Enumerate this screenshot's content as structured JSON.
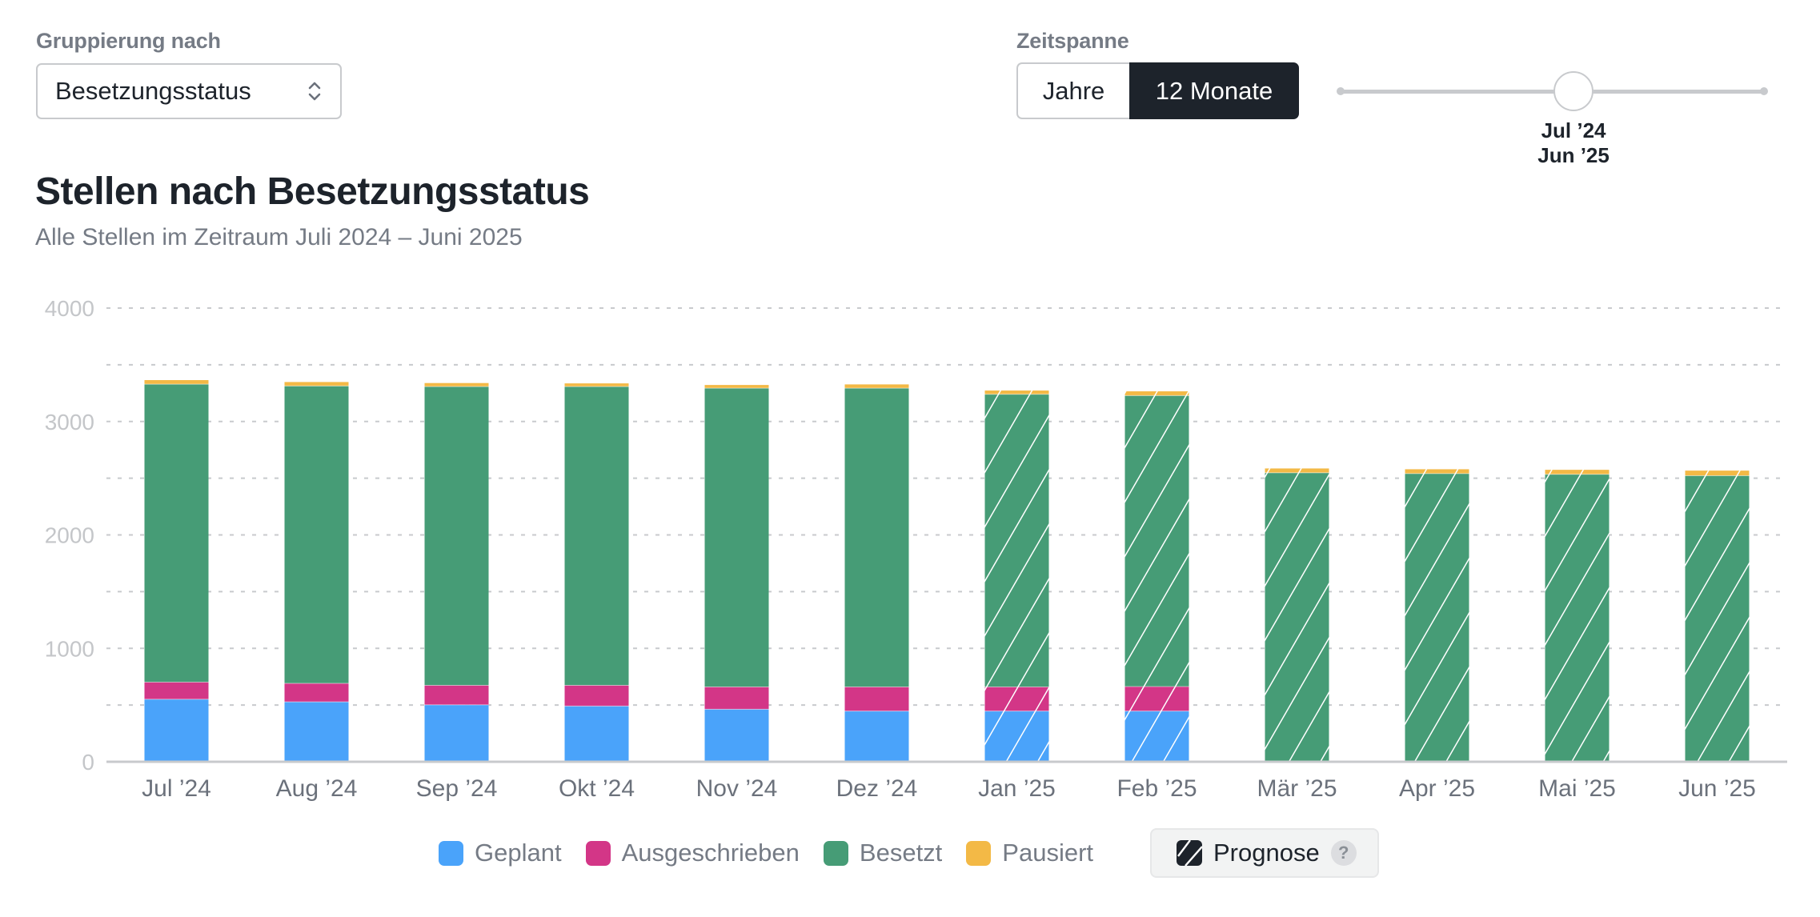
{
  "controls": {
    "group_by": {
      "label": "Gruppierung nach",
      "selected": "Besetzungsstatus"
    },
    "time_range": {
      "label": "Zeitspanne",
      "options": [
        "Jahre",
        "12 Monate"
      ],
      "selected": "12 Monate",
      "slider": {
        "position_fraction": 0.55,
        "start_label": "Jul ’24",
        "end_label": "Jun ’25"
      }
    }
  },
  "colors": {
    "Geplant": "#4aa3fa",
    "Ausgeschrieben": "#d33687",
    "Besetzt": "#469c76",
    "Pausiert": "#f3b946",
    "gridline": "#c8cacd",
    "axis": "#c8cacd"
  },
  "legend": {
    "items": [
      "Geplant",
      "Ausgeschrieben",
      "Besetzt",
      "Pausiert"
    ],
    "forecast_label": "Prognose",
    "help_symbol": "?"
  },
  "chart_data": {
    "type": "bar",
    "stacked": true,
    "title": "Stellen nach Besetzungsstatus",
    "subtitle": "Alle Stellen im Zeitraum Juli 2024 – Juni 2025",
    "xlabel": "",
    "ylabel": "",
    "ylim": [
      0,
      4000
    ],
    "yticks": [
      0,
      1000,
      2000,
      3000,
      4000
    ],
    "gridlines_every": 500,
    "grid": true,
    "legend_position": "bottom",
    "categories": [
      "Jul ’24",
      "Aug ’24",
      "Sep ’24",
      "Okt ’24",
      "Nov ’24",
      "Dez ’24",
      "Jan ’25",
      "Feb ’25",
      "Mär ’25",
      "Apr ’25",
      "Mai ’25",
      "Jun ’25"
    ],
    "forecast": [
      false,
      false,
      false,
      false,
      false,
      false,
      true,
      true,
      true,
      true,
      true,
      true
    ],
    "series": [
      {
        "name": "Geplant",
        "values": [
          551,
          528,
          502,
          491,
          463,
          447,
          447,
          447,
          0,
          0,
          0,
          0
        ]
      },
      {
        "name": "Ausgeschrieben",
        "values": [
          151,
          163,
          172,
          183,
          197,
          213,
          213,
          216,
          0,
          0,
          0,
          0
        ]
      },
      {
        "name": "Besetzt",
        "values": [
          2627,
          2622,
          2634,
          2634,
          2634,
          2634,
          2580,
          2565,
          2548,
          2541,
          2534,
          2522
        ]
      },
      {
        "name": "Pausiert",
        "values": [
          36,
          35,
          31,
          28,
          28,
          33,
          33,
          38,
          38,
          38,
          40,
          45
        ]
      }
    ]
  }
}
